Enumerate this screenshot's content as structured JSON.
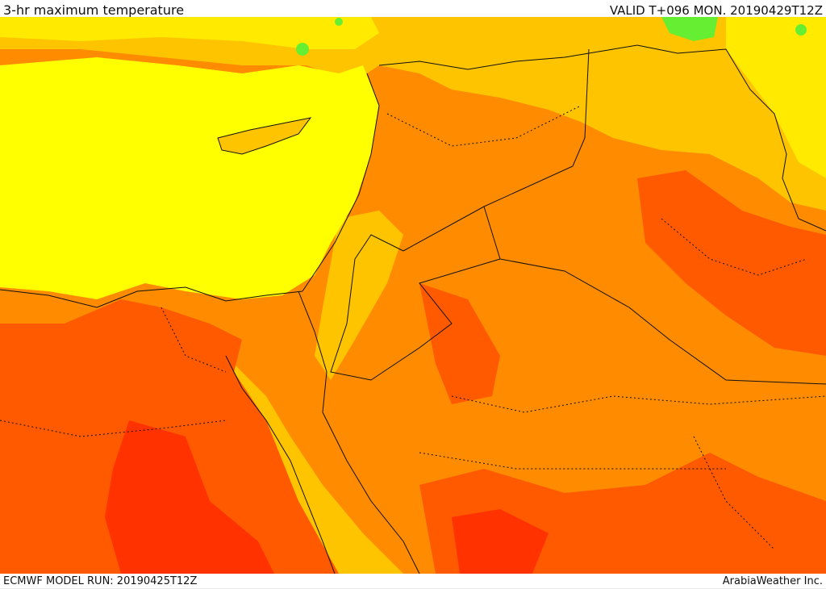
{
  "header": {
    "title": "3-hr maximum temperature",
    "valid": "VALID T+096 MON. 20190429T12Z"
  },
  "footer": {
    "model_run": "ECMWF MODEL RUN: 20190425T12Z",
    "credit": "ArabiaWeather Inc."
  },
  "palette": {
    "yellow": "#ffff00",
    "light_yellow": "#ffea00",
    "light_orange": "#ffc400",
    "orange": "#ff8c00",
    "dark_orange": "#ff5a00",
    "red_orange": "#ff3200",
    "green": "#66ee33",
    "border": "#111111"
  }
}
